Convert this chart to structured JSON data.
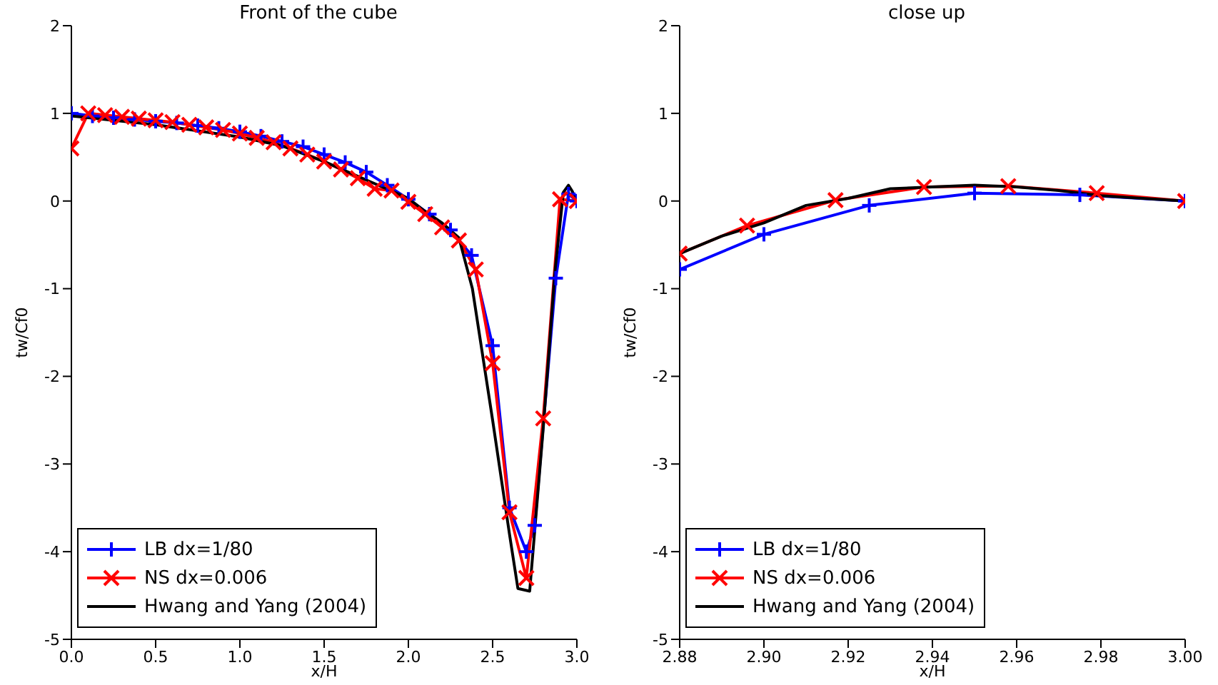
{
  "chart_data": [
    {
      "type": "line",
      "title": "Front of the cube",
      "xlabel": "x/H",
      "ylabel": "tw/Cf0",
      "legend": "bottom left",
      "grid": false,
      "line_style": "solid",
      "xlim": [
        0,
        3
      ],
      "xticks": [
        {
          "value": 0,
          "label": "0.0"
        },
        {
          "value": 0.5,
          "label": "0.5"
        },
        {
          "value": 1,
          "label": "1.0"
        },
        {
          "value": 1.5,
          "label": "1.5"
        },
        {
          "value": 2,
          "label": "2.0"
        },
        {
          "value": 2.5,
          "label": "2.5"
        },
        {
          "value": 3,
          "label": "3.0"
        }
      ],
      "ylim": [
        -5,
        2
      ],
      "yticks": [
        -5,
        -4,
        -3,
        -2,
        -1,
        0,
        1,
        2
      ],
      "series": [
        {
          "name": "LB dx=1/80",
          "color": "#0000ff",
          "marker": "plus",
          "x": [
            0,
            0.125,
            0.25,
            0.375,
            0.5,
            0.625,
            0.75,
            0.875,
            1.0,
            1.125,
            1.25,
            1.375,
            1.5,
            1.625,
            1.75,
            1.875,
            2.0,
            2.125,
            2.25,
            2.375,
            2.5,
            2.6,
            2.7,
            2.75,
            2.875,
            2.95,
            3.0
          ],
          "values": [
            1.0,
            0.97,
            0.95,
            0.93,
            0.91,
            0.89,
            0.86,
            0.83,
            0.79,
            0.74,
            0.68,
            0.62,
            0.53,
            0.44,
            0.33,
            0.18,
            0.02,
            -0.15,
            -0.33,
            -0.62,
            -1.65,
            -3.5,
            -4.0,
            -3.7,
            -0.88,
            0.08,
            0.0
          ]
        },
        {
          "name": "NS dx=0.006",
          "color": "#ff0000",
          "marker": "cross",
          "x": [
            0,
            0.1,
            0.2,
            0.3,
            0.4,
            0.5,
            0.6,
            0.7,
            0.8,
            0.9,
            1.0,
            1.1,
            1.2,
            1.3,
            1.4,
            1.5,
            1.6,
            1.7,
            1.8,
            1.9,
            2.0,
            2.1,
            2.2,
            2.3,
            2.4,
            2.5,
            2.6,
            2.7,
            2.8,
            2.9,
            3.0
          ],
          "values": [
            0.6,
            1.0,
            0.98,
            0.96,
            0.94,
            0.92,
            0.9,
            0.87,
            0.84,
            0.81,
            0.77,
            0.72,
            0.67,
            0.6,
            0.53,
            0.45,
            0.36,
            0.26,
            0.14,
            0.12,
            -0.01,
            -0.15,
            -0.3,
            -0.45,
            -0.78,
            -1.85,
            -3.55,
            -4.3,
            -2.48,
            0.02,
            0.0
          ]
        },
        {
          "name": "Hwang and Yang (2004)",
          "color": "#000000",
          "marker": "none",
          "x": [
            0,
            0.5,
            1.0,
            1.25,
            1.5,
            1.75,
            2.0,
            2.1,
            2.2,
            2.3,
            2.38,
            2.5,
            2.6,
            2.65,
            2.72,
            2.8,
            2.87,
            2.92,
            2.95,
            2.97,
            3.0
          ],
          "values": [
            0.97,
            0.87,
            0.73,
            0.63,
            0.45,
            0.24,
            0.03,
            -0.12,
            -0.25,
            -0.42,
            -1.0,
            -2.5,
            -3.8,
            -4.42,
            -4.45,
            -2.6,
            -0.8,
            0.1,
            0.18,
            0.12,
            0.0
          ]
        }
      ]
    },
    {
      "type": "line",
      "title": "close up",
      "xlabel": "x/H",
      "ylabel": "tw/Cf0",
      "legend": "bottom left",
      "grid": false,
      "line_style": "solid",
      "xlim": [
        2.88,
        3.0
      ],
      "xticks": [
        {
          "value": 2.88,
          "label": "2.88"
        },
        {
          "value": 2.9,
          "label": "2.90"
        },
        {
          "value": 2.92,
          "label": "2.92"
        },
        {
          "value": 2.94,
          "label": "2.94"
        },
        {
          "value": 2.96,
          "label": "2.96"
        },
        {
          "value": 2.98,
          "label": "2.98"
        },
        {
          "value": 3.0,
          "label": "3.00"
        }
      ],
      "ylim": [
        -5,
        2
      ],
      "yticks": [
        -5,
        -4,
        -3,
        -2,
        -1,
        0,
        1,
        2
      ],
      "series": [
        {
          "name": "LB dx=1/80",
          "color": "#0000ff",
          "marker": "plus",
          "x": [
            2.88,
            2.9,
            2.925,
            2.95,
            2.975,
            3.0
          ],
          "values": [
            -0.78,
            -0.38,
            -0.05,
            0.09,
            0.07,
            0.0
          ]
        },
        {
          "name": "NS dx=0.006",
          "color": "#ff0000",
          "marker": "cross",
          "x": [
            2.88,
            2.896,
            2.917,
            2.938,
            2.958,
            2.979,
            3.0
          ],
          "values": [
            -0.6,
            -0.28,
            0.01,
            0.16,
            0.17,
            0.09,
            0.0
          ]
        },
        {
          "name": "Hwang and Yang (2004)",
          "color": "#000000",
          "marker": "none",
          "x": [
            2.88,
            2.89,
            2.9,
            2.91,
            2.92,
            2.93,
            2.95,
            2.96,
            2.97,
            2.98,
            3.0
          ],
          "values": [
            -0.6,
            -0.4,
            -0.25,
            -0.05,
            0.03,
            0.14,
            0.18,
            0.16,
            0.12,
            0.06,
            0.0
          ]
        }
      ]
    }
  ]
}
